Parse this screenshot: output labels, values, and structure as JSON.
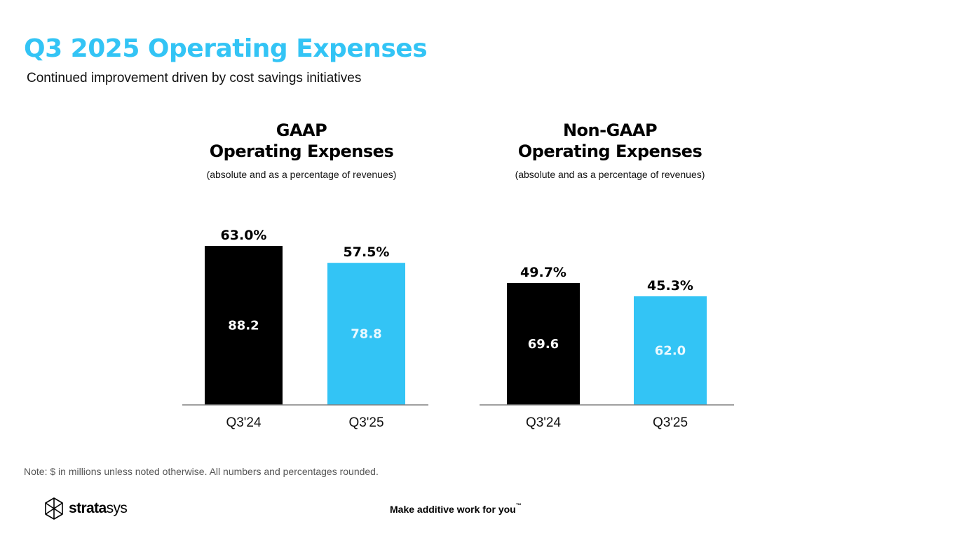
{
  "page": {
    "title": "Q3 2025 Operating Expenses",
    "subtitle": "Continued improvement driven by cost savings initiatives"
  },
  "colors": {
    "accent": "#33c4f5",
    "bar_prior": "#000000",
    "bar_current": "#33c4f5",
    "axis": "#808080"
  },
  "chart_data": [
    {
      "type": "bar",
      "title_line1": "GAAP",
      "title_line2": "Operating Expenses",
      "note": "(absolute and as a percentage of revenues)",
      "categories": [
        "Q3'24",
        "Q3'25"
      ],
      "values": [
        88.2,
        78.8
      ],
      "value_labels": [
        "88.2",
        "78.8"
      ],
      "pct_labels": [
        "63.0%",
        "57.5%"
      ],
      "ylim": [
        0,
        88.2
      ]
    },
    {
      "type": "bar",
      "title_line1": "Non-GAAP",
      "title_line2": "Operating Expenses",
      "note": "(absolute and as a percentage of revenues)",
      "categories": [
        "Q3'24",
        "Q3'25"
      ],
      "values": [
        69.6,
        62.0
      ],
      "value_labels": [
        "69.6",
        "62.0"
      ],
      "pct_labels": [
        "49.7%",
        "45.3%"
      ],
      "ylim": [
        0,
        78.8
      ]
    }
  ],
  "footer": {
    "note": "Note: $ in millions unless noted otherwise. All numbers and percentages rounded.",
    "logo_bold": "strata",
    "logo_light": "sys",
    "tagline": "Make additive work for you",
    "tagline_mark": "™",
    "logo_icon": "stratasys-star-icon"
  }
}
